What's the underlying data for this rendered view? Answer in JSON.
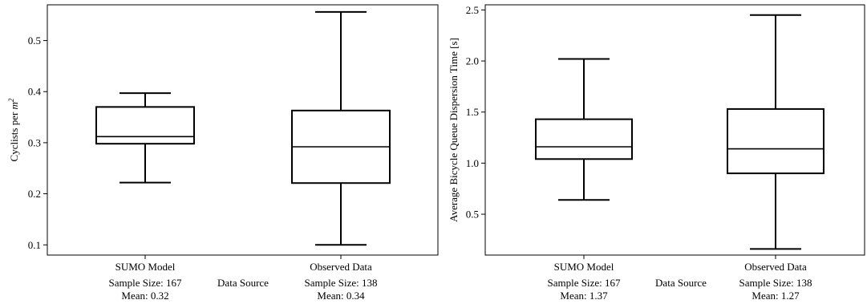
{
  "chart_data": [
    {
      "type": "box",
      "xlabel": "Data Source",
      "ylabel": "Cyclists per ",
      "ylabel_math": "m",
      "ylabel_sup": "2",
      "ylim": [
        0.08,
        0.57
      ],
      "yticks": [
        0.1,
        0.2,
        0.3,
        0.4,
        0.5
      ],
      "ytick_labels": [
        "0.1",
        "0.2",
        "0.3",
        "0.4",
        "0.5"
      ],
      "grid": false,
      "categories": [
        {
          "label": "SUMO Model",
          "sample": "Sample Size: 167",
          "mean": "Mean: 0.32"
        },
        {
          "label": "Observed Data",
          "sample": "Sample Size: 138",
          "mean": "Mean: 0.34"
        }
      ],
      "boxes": [
        {
          "whisker_low": 0.222,
          "q1": 0.298,
          "median": 0.312,
          "q3": 0.37,
          "whisker_high": 0.397
        },
        {
          "whisker_low": 0.1,
          "q1": 0.221,
          "median": 0.292,
          "q3": 0.363,
          "whisker_high": 0.556
        }
      ]
    },
    {
      "type": "box",
      "xlabel": "Data Source",
      "ylabel": "Average Bicycle Queue Dispersion Time [s]",
      "ylim": [
        0.1,
        2.55
      ],
      "yticks": [
        0.5,
        1.0,
        1.5,
        2.0,
        2.5
      ],
      "ytick_labels": [
        "0.5",
        "1.0",
        "1.5",
        "2.0",
        "2.5"
      ],
      "grid": false,
      "categories": [
        {
          "label": "SUMO Model",
          "sample": "Sample Size: 167",
          "mean": "Mean: 1.37"
        },
        {
          "label": "Observed Data",
          "sample": "Sample Size: 138",
          "mean": "Mean: 1.27"
        }
      ],
      "boxes": [
        {
          "whisker_low": 0.64,
          "q1": 1.04,
          "median": 1.16,
          "q3": 1.43,
          "whisker_high": 2.02
        },
        {
          "whisker_low": 0.16,
          "q1": 0.9,
          "median": 1.14,
          "q3": 1.53,
          "whisker_high": 2.45
        }
      ]
    }
  ]
}
